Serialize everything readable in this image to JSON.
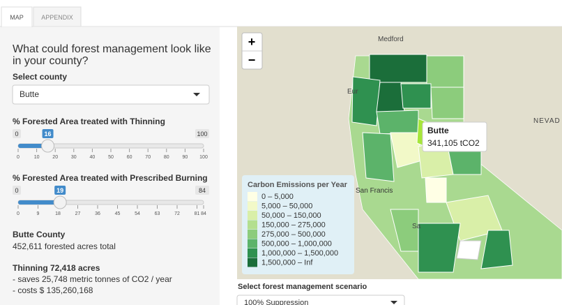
{
  "tabs": [
    "MAP",
    "APPENDIX"
  ],
  "sidebar": {
    "heading": "What could forest management look like in your county?",
    "county_label": "Select county",
    "county_value": "Butte",
    "sliders": [
      {
        "label": "% Forested Area treated with Thinning",
        "min": 0,
        "max": 100,
        "value": 16,
        "ticks": [
          0,
          10,
          20,
          30,
          40,
          50,
          60,
          70,
          80,
          90,
          100
        ]
      },
      {
        "label": "% Forested Area treated with Prescribed Burning",
        "min": 0,
        "max": 84,
        "value": 19,
        "ticks": [
          0,
          9,
          18,
          27,
          36,
          45,
          54,
          63,
          72,
          81,
          84
        ]
      }
    ],
    "summary_title": "Butte County",
    "summary_text": "452,611 forested acres total",
    "thinning_title": "Thinning 72,418 acres",
    "thinning_lines": [
      "- saves 25,748 metric tonnes of CO2 / year",
      "- costs $ 135,260,168"
    ]
  },
  "map": {
    "zoom_in": "+",
    "zoom_out": "−",
    "place_labels": [
      "Medford",
      "Eur",
      "San Francis",
      "NEVAD",
      "Sa"
    ],
    "tooltip": {
      "name": "Butte",
      "value": "341,105 tCO2"
    },
    "legend": {
      "title": "Carbon Emissions per Year",
      "items": [
        {
          "label": "0 – 5,000",
          "color": "#ffffe5"
        },
        {
          "label": "5,000 – 50,000",
          "color": "#f2f9c8"
        },
        {
          "label": "50,000 – 150,000",
          "color": "#d9efa8"
        },
        {
          "label": "150,000 – 275,000",
          "color": "#b3df8f"
        },
        {
          "label": "275,000 – 500,000",
          "color": "#8ccc7c"
        },
        {
          "label": "500,000 – 1,000,000",
          "color": "#5cb36a"
        },
        {
          "label": "1,000,000 – 1,500,000",
          "color": "#2f9150"
        },
        {
          "label": "1,500,000 – Inf",
          "color": "#1b6e3a"
        }
      ]
    }
  },
  "scenario": {
    "label": "Select forest management scenario",
    "value": "100% Suppression"
  }
}
